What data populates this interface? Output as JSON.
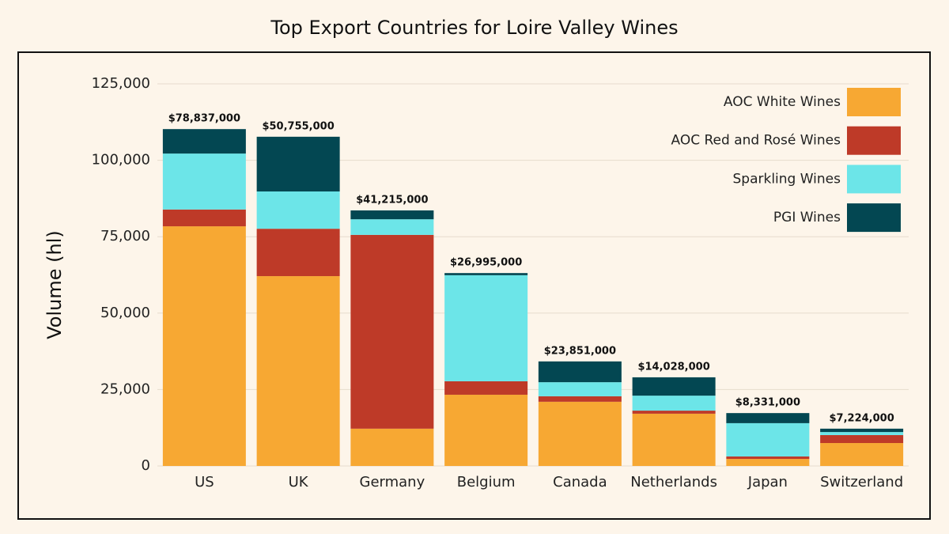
{
  "chart_data": {
    "type": "stacked-bar",
    "title": "Top Export Countries for Loire Valley Wines",
    "y_label": "Volume (hl)",
    "categories": [
      "US",
      "UK",
      "Germany",
      "Belgium",
      "Canada",
      "Netherlands",
      "Japan",
      "Switzerland"
    ],
    "series": [
      {
        "name": "AOC White Wines",
        "color": "#f7a833",
        "values": [
          78400,
          62100,
          12200,
          23300,
          21000,
          17100,
          2300,
          7500
        ]
      },
      {
        "name": "AOC Red and Rosé Wines",
        "color": "#be3a28",
        "values": [
          5500,
          15500,
          63400,
          4400,
          1800,
          1000,
          800,
          2600
        ]
      },
      {
        "name": "Sparkling Wines",
        "color": "#6ce5e8",
        "values": [
          18300,
          12200,
          5100,
          34700,
          4600,
          4900,
          10900,
          1000
        ]
      },
      {
        "name": "PGI Wines",
        "color": "#034752",
        "values": [
          8000,
          17900,
          2900,
          700,
          6800,
          6000,
          3300,
          1100
        ]
      }
    ],
    "bar_annotations": [
      "$78,837,000",
      "$50,755,000",
      "$41,215,000",
      "$26,995,000",
      "$23,851,000",
      "$14,028,000",
      "$8,331,000",
      "$7,224,000"
    ],
    "ylim": [
      0,
      125000
    ],
    "yticks": [
      0,
      {
        "value": 25000,
        "label": "25,000"
      },
      {
        "value": 50000,
        "label": "50,000"
      },
      {
        "value": 75000,
        "label": "75,000"
      },
      {
        "value": 100000,
        "label": "100,000"
      },
      {
        "value": 125000,
        "label": "125,000"
      }
    ],
    "grid": true,
    "legend": "top-right"
  }
}
